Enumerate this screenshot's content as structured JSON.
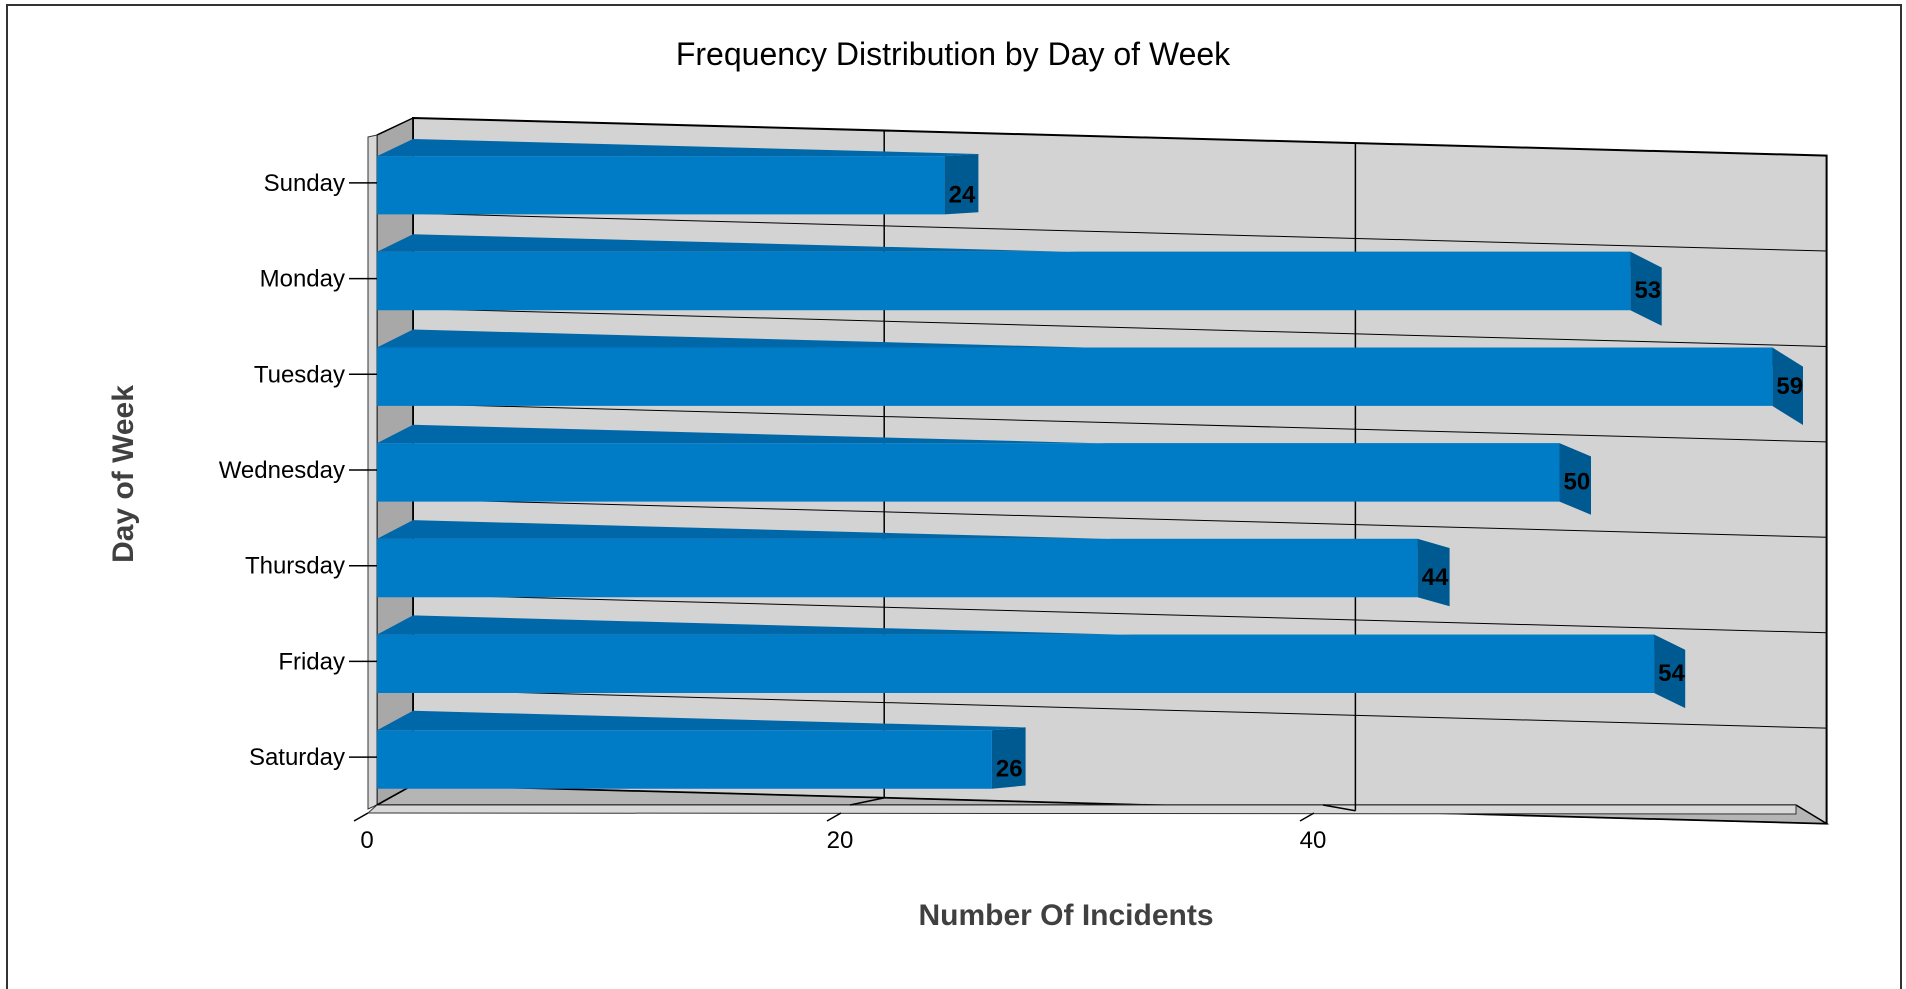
{
  "chart_data": {
    "type": "bar",
    "orientation": "horizontal",
    "style": "3d",
    "title": "Frequency Distribution by Day of Week",
    "xlabel": "Number Of Incidents",
    "ylabel": "Day of Week",
    "categories": [
      "Sunday",
      "Monday",
      "Tuesday",
      "Wednesday",
      "Thursday",
      "Friday",
      "Saturday"
    ],
    "values": [
      24,
      53,
      59,
      50,
      44,
      54,
      26
    ],
    "data_labels": [
      "24",
      "53",
      "59",
      "50",
      "44",
      "54",
      "26"
    ],
    "xticks": [
      0,
      20,
      40
    ],
    "xtick_labels": [
      "0",
      "20",
      "40"
    ],
    "xlim": [
      0,
      60
    ],
    "grid": true,
    "legend": "none",
    "colors": {
      "bar_front": "#007BC6",
      "bar_top": "#0068A8",
      "bar_side": "#005A92",
      "wall": "#D3D3D3",
      "floor": "#B5B5B5",
      "grid": "#000000"
    }
  }
}
